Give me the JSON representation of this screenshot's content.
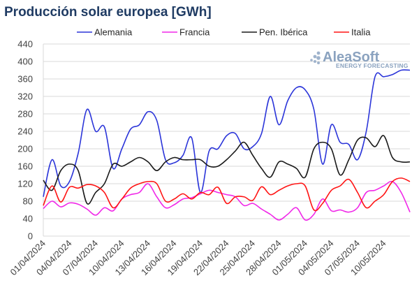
{
  "chart_data": {
    "type": "line",
    "title": "Producción solar europea [GWh]",
    "xlabel": "",
    "ylabel": "",
    "ylim": [
      0,
      440
    ],
    "yticks": [
      0,
      40,
      80,
      120,
      160,
      200,
      240,
      280,
      320,
      360,
      400,
      440
    ],
    "grid": true,
    "legend_position": "top",
    "x_tick_labels": [
      "01/04/2024",
      "04/04/2024",
      "07/04/2024",
      "10/04/2024",
      "13/04/2024",
      "16/04/2024",
      "19/04/2024",
      "22/04/2024",
      "25/04/2024",
      "28/04/2024",
      "01/05/2024",
      "04/05/2024",
      "07/05/2024",
      "10/05/2024"
    ],
    "x": [
      "01/04",
      "02/04",
      "03/04",
      "04/04",
      "05/04",
      "06/04",
      "07/04",
      "08/04",
      "09/04",
      "10/04",
      "11/04",
      "12/04",
      "13/04",
      "14/04",
      "15/04",
      "16/04",
      "17/04",
      "18/04",
      "19/04",
      "20/04",
      "21/04",
      "22/04",
      "23/04",
      "24/04",
      "25/04",
      "26/04",
      "27/04",
      "28/04",
      "29/04",
      "30/04",
      "01/05",
      "02/05",
      "03/05",
      "04/05",
      "05/05",
      "06/05",
      "07/05",
      "08/05",
      "09/05",
      "10/05",
      "11/05",
      "12/05",
      "13/05"
    ],
    "series": [
      {
        "name": "Alemania",
        "color": "#2b35d9",
        "values": [
          90,
          175,
          115,
          125,
          190,
          290,
          240,
          250,
          155,
          200,
          245,
          255,
          285,
          265,
          175,
          168,
          185,
          225,
          100,
          195,
          200,
          230,
          235,
          200,
          205,
          235,
          320,
          255,
          310,
          340,
          335,
          290,
          165,
          255,
          215,
          210,
          175,
          240,
          365,
          365,
          370,
          380,
          380
        ]
      },
      {
        "name": "Francia",
        "color": "#f028e8",
        "values": [
          63,
          80,
          67,
          76,
          73,
          62,
          48,
          65,
          58,
          85,
          95,
          100,
          120,
          90,
          65,
          72,
          85,
          88,
          97,
          105,
          100,
          95,
          90,
          70,
          75,
          62,
          50,
          37,
          50,
          65,
          37,
          50,
          85,
          58,
          60,
          55,
          65,
          100,
          105,
          115,
          125,
          100,
          55
        ]
      },
      {
        "name": "Pen. Ibérica",
        "color": "#1a1a1a",
        "values": [
          128,
          105,
          150,
          165,
          150,
          75,
          100,
          120,
          165,
          160,
          170,
          180,
          170,
          150,
          170,
          180,
          175,
          175,
          175,
          160,
          160,
          175,
          195,
          215,
          185,
          155,
          135,
          170,
          165,
          155,
          135,
          200,
          215,
          200,
          140,
          175,
          220,
          225,
          205,
          230,
          180,
          170,
          170
        ]
      },
      {
        "name": "Italia",
        "color": "#ff1414",
        "values": [
          70,
          115,
          78,
          112,
          110,
          118,
          115,
          100,
          65,
          85,
          110,
          120,
          125,
          120,
          80,
          85,
          97,
          85,
          100,
          95,
          112,
          75,
          90,
          90,
          82,
          113,
          95,
          105,
          115,
          120,
          115,
          60,
          75,
          105,
          115,
          130,
          100,
          65,
          80,
          95,
          125,
          133,
          125
        ]
      }
    ]
  },
  "brand": {
    "name": "AleaSoft",
    "tagline": "ENERGY FORECASTING"
  }
}
